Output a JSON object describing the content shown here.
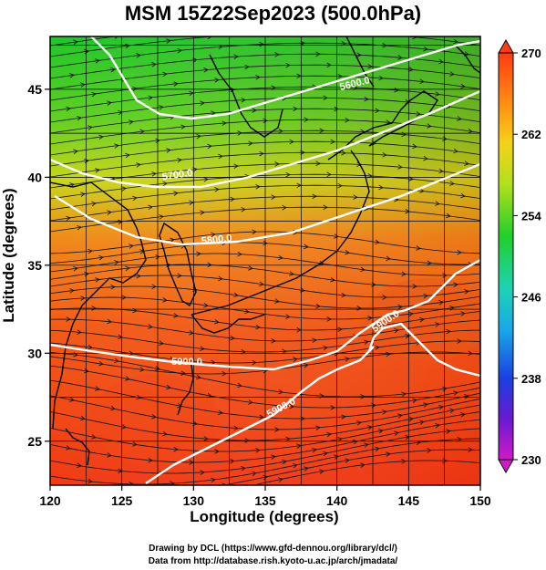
{
  "title": "MSM 15Z22Sep2023 (500.0hPa)",
  "x_axis": {
    "label": "Longitude (degrees)",
    "ticks": [
      "120",
      "125",
      "130",
      "135",
      "140",
      "145",
      "150"
    ]
  },
  "y_axis": {
    "label": "Latitude  (degrees)",
    "ticks": [
      "25",
      "30",
      "35",
      "40",
      "45"
    ]
  },
  "colorbar": {
    "ticks": [
      "270",
      "262",
      "254",
      "246",
      "238",
      "230"
    ],
    "min": 230,
    "max": 270
  },
  "contour_labels": [
    "5600.0",
    "5700.0",
    "5800.0",
    "5900.0",
    "5900.0",
    "5900.0"
  ],
  "credits": [
    "Drawing by DCL (https://www.gfd-dennou.org/library/dcl/)",
    "Data from http://database.rish.kyoto-u.ac.jp/arch/jmadata/"
  ]
}
